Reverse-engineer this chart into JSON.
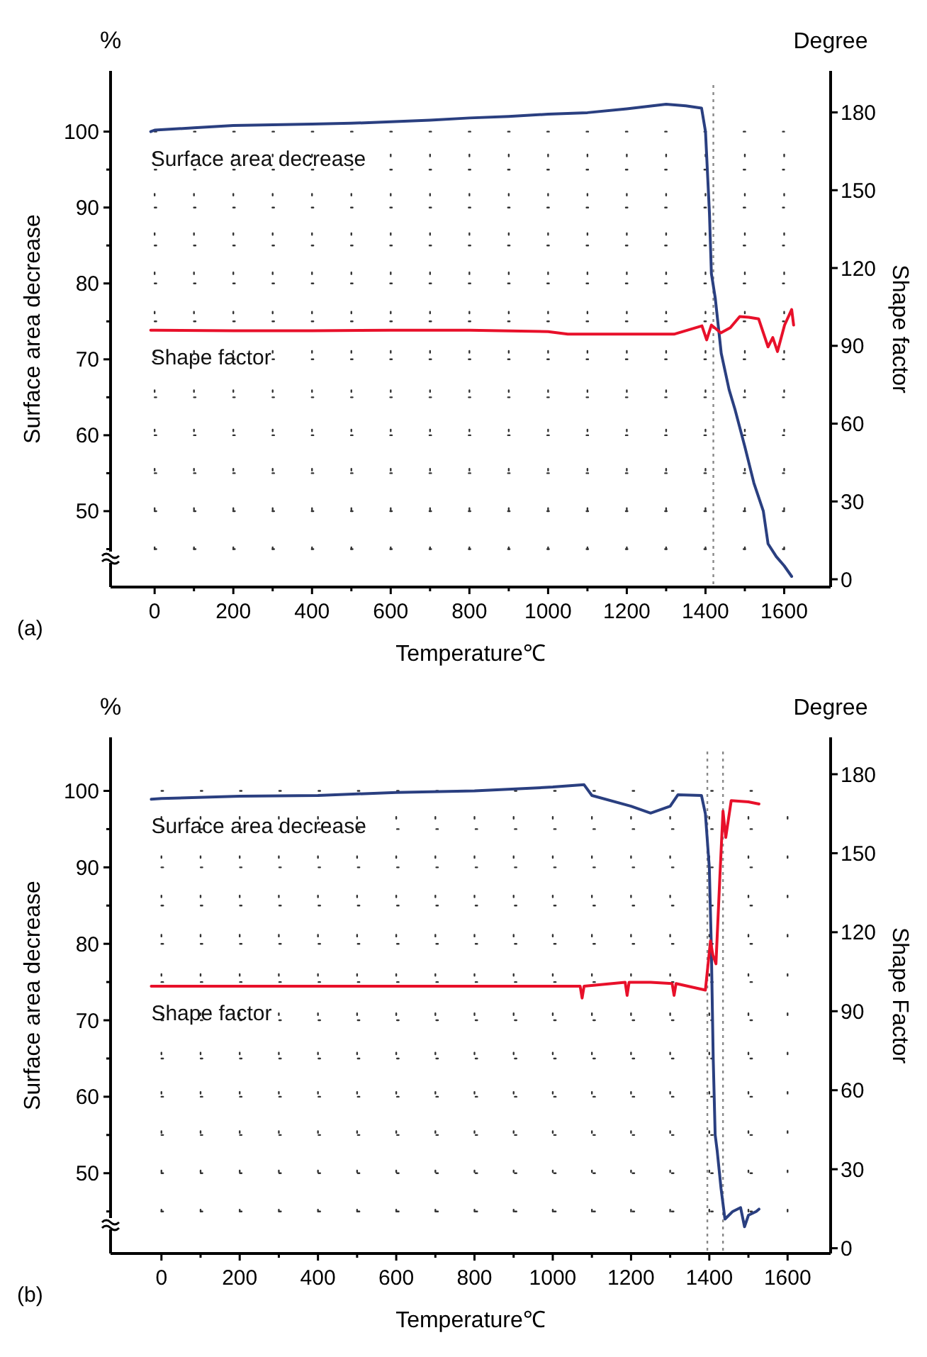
{
  "chart_data": [
    {
      "type": "line",
      "xlabel": "Temperature℃",
      "ylabel": "Surface area decrease",
      "y2label": "Shape factor",
      "annotations": [
        "(a)",
        "%",
        "Degree"
      ],
      "xlim": [
        -112,
        1718
      ],
      "ylim": [
        40,
        108
      ],
      "y2lim": [
        -3,
        196
      ],
      "xticks": [
        0,
        {
          "value": 100,
          "label": null
        },
        200,
        {
          "value": 300,
          "label": null
        },
        400,
        {
          "value": 500,
          "label": null
        },
        600,
        {
          "value": 700,
          "label": null
        },
        800,
        {
          "value": 900,
          "label": null
        },
        1000,
        {
          "value": 1100,
          "label": null
        },
        1200,
        {
          "value": 1300,
          "label": null
        },
        1400,
        {
          "value": 1500,
          "label": null
        },
        1600
      ],
      "yticks": [
        {
          "value": 45,
          "label": null
        },
        50,
        {
          "value": 55,
          "label": null
        },
        60,
        {
          "value": 65,
          "label": null
        },
        70,
        {
          "value": 75,
          "label": null
        },
        80,
        {
          "value": 85,
          "label": null
        },
        90,
        {
          "value": 95,
          "label": null
        },
        100
      ],
      "y2ticks": [
        0,
        30,
        60,
        90,
        120,
        150,
        180
      ],
      "grid": true,
      "ref_lines": [
        {
          "axis": "x",
          "value": 1420,
          "color": "#888888",
          "line_style": "dotted"
        }
      ],
      "series": [
        {
          "name": "Surface area decrease",
          "color": "#2a3f80",
          "x": [
            -10,
            0,
            100,
            200,
            300,
            400,
            500,
            600,
            700,
            800,
            900,
            1000,
            1100,
            1200,
            1300,
            1350,
            1390,
            1400,
            1410,
            1415,
            1425,
            1440,
            1460,
            1475,
            1500,
            1523,
            1547,
            1559,
            1580,
            1600,
            1619
          ],
          "values": [
            100,
            100.2,
            100.5,
            100.8,
            100.9,
            101,
            101.1,
            101.3,
            101.5,
            101.8,
            102,
            102.3,
            102.5,
            103,
            103.6,
            103.4,
            103.1,
            100,
            89.3,
            81.3,
            78,
            70.8,
            66,
            63.4,
            58.5,
            53.7,
            50,
            45.7,
            44,
            42.8,
            41.4
          ]
        },
        {
          "name": "Shape factor",
          "color": "#e8102a",
          "axis": "y2",
          "x": [
            -10,
            0,
            200,
            400,
            600,
            800,
            1000,
            1050,
            1200,
            1320,
            1391,
            1403,
            1415,
            1439,
            1463,
            1487,
            1510,
            1535,
            1559,
            1571,
            1583,
            1601,
            1619,
            1624
          ],
          "values": [
            96,
            96,
            95.8,
            95.8,
            96,
            96,
            95.5,
            94.5,
            94.5,
            94.5,
            97.7,
            92.3,
            98,
            95,
            97,
            101.3,
            101,
            100.4,
            89.6,
            93.2,
            87.8,
            98,
            104,
            98
          ]
        }
      ]
    },
    {
      "type": "line",
      "xlabel": "Temperature℃",
      "ylabel": "Surface area decrease",
      "y2label": "Shape Factor",
      "annotations": [
        "(b)",
        "%",
        "Degree"
      ],
      "xlim": [
        -130,
        1710
      ],
      "ylim": [
        39.5,
        107
      ],
      "y2lim": [
        -2,
        194
      ],
      "xticks": [
        0,
        {
          "value": 100,
          "label": null
        },
        200,
        {
          "value": 300,
          "label": null
        },
        400,
        {
          "value": 500,
          "label": null
        },
        600,
        {
          "value": 700,
          "label": null
        },
        800,
        {
          "value": 900,
          "label": null
        },
        1000,
        {
          "value": 1100,
          "label": null
        },
        1200,
        {
          "value": 1300,
          "label": null
        },
        1400,
        {
          "value": 1500,
          "label": null
        },
        1600
      ],
      "yticks": [
        {
          "value": 45,
          "label": null
        },
        50,
        {
          "value": 55,
          "label": null
        },
        60,
        {
          "value": 65,
          "label": null
        },
        70,
        {
          "value": 75,
          "label": null
        },
        80,
        {
          "value": 85,
          "label": null
        },
        90,
        {
          "value": 95,
          "label": null
        },
        100
      ],
      "y2ticks": [
        0,
        30,
        60,
        90,
        120,
        150,
        180
      ],
      "grid": true,
      "ref_lines": [
        {
          "axis": "x",
          "value": 1395,
          "color": "#888888",
          "line_style": "dotted"
        },
        {
          "axis": "x",
          "value": 1435,
          "color": "#888888",
          "line_style": "dotted"
        }
      ],
      "series": [
        {
          "name": "Surface area decrease",
          "color": "#2a3f80",
          "x": [
            -26,
            0,
            200,
            400,
            600,
            800,
            1000,
            1080,
            1100,
            1200,
            1250,
            1300,
            1320,
            1380,
            1390,
            1400,
            1405,
            1410,
            1415,
            1420,
            1430,
            1440,
            1460,
            1480,
            1490,
            1500,
            1520,
            1527
          ],
          "values": [
            98.9,
            99,
            99.3,
            99.4,
            99.8,
            100,
            100.5,
            100.8,
            99.4,
            98,
            97.1,
            98,
            99.5,
            99.4,
            97,
            90,
            80,
            65,
            55,
            53,
            48,
            44,
            45,
            45.5,
            43,
            44.5,
            45,
            45.3
          ]
        },
        {
          "name": "Shape factor",
          "color": "#e8102a",
          "axis": "y2",
          "x": [
            -26,
            0,
            200,
            400,
            600,
            800,
            1000,
            1070,
            1075,
            1080,
            1185,
            1190,
            1195,
            1250,
            1305,
            1310,
            1315,
            1390,
            1403,
            1409,
            1417,
            1427,
            1435,
            1442,
            1456,
            1500,
            1527
          ],
          "values": [
            99.5,
            99.5,
            99.5,
            99.5,
            99.5,
            99.5,
            99.5,
            99.5,
            95,
            99.5,
            101,
            96,
            101,
            101,
            100.5,
            96,
            100.5,
            98,
            116.7,
            111.4,
            108,
            141,
            166,
            156,
            170,
            169.5,
            168.7
          ]
        }
      ]
    }
  ]
}
